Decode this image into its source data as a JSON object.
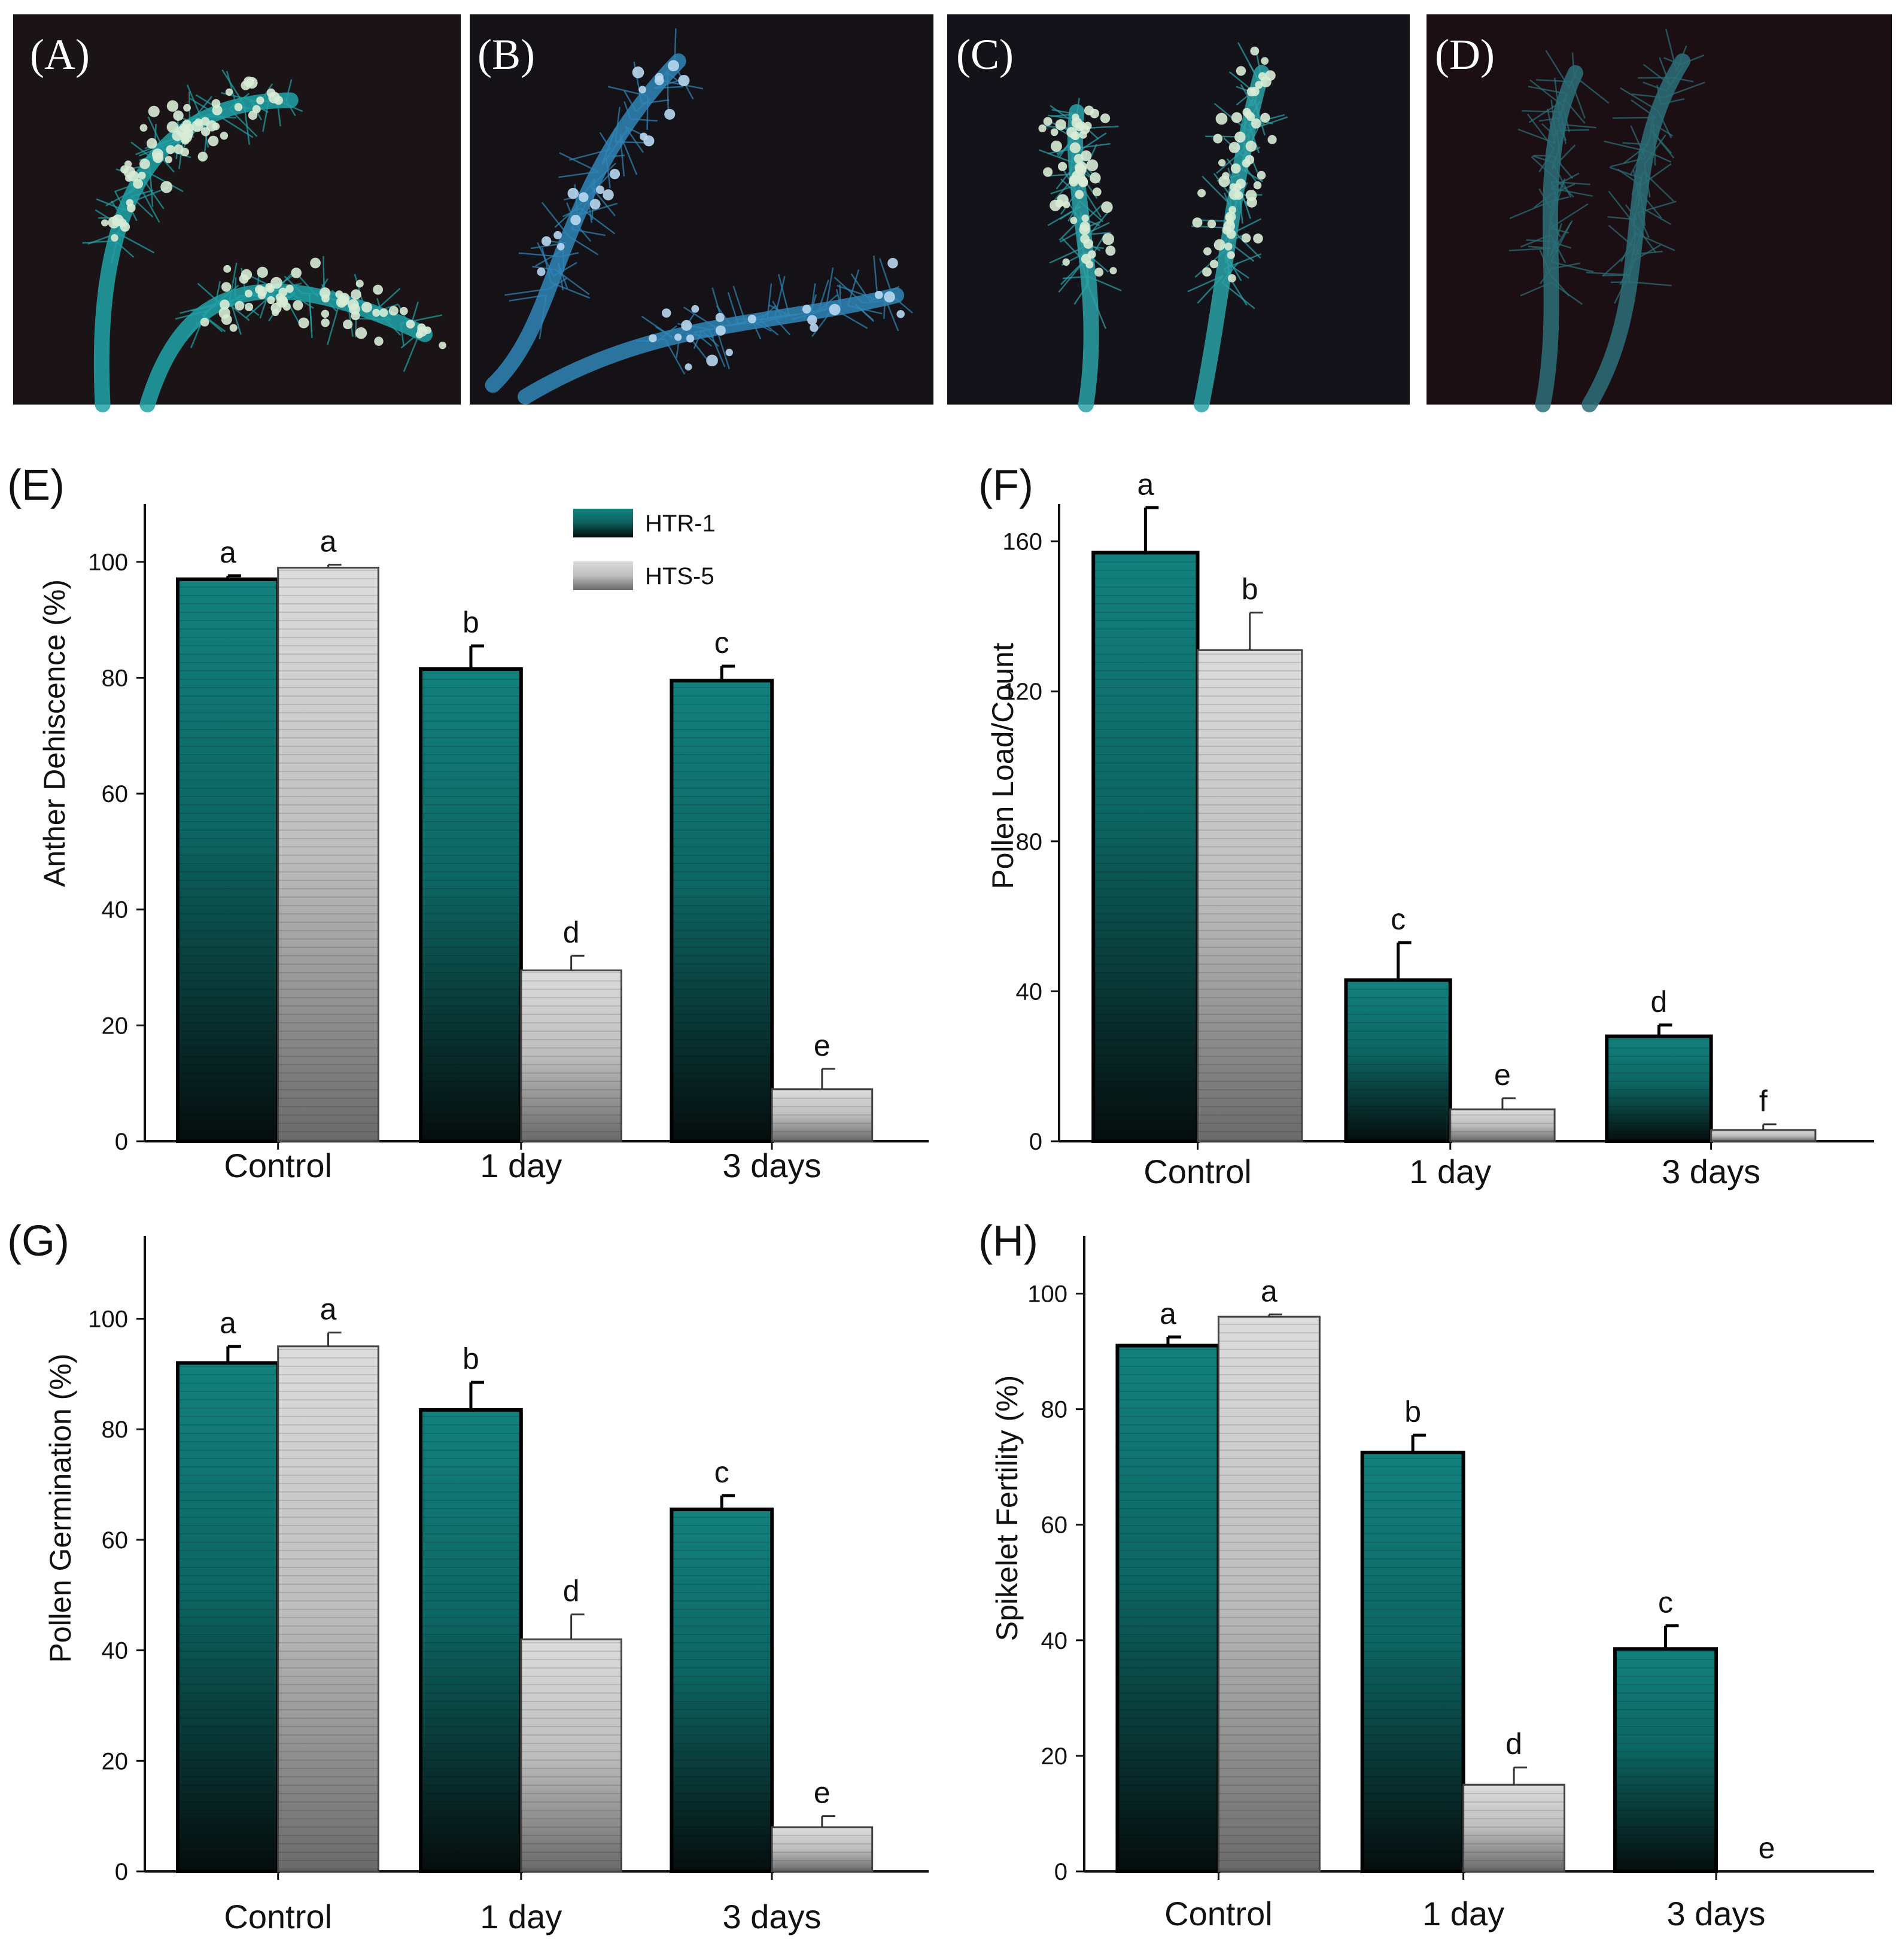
{
  "photos": [
    {
      "label": "(A)",
      "tint": "#20a3a8",
      "bg": "#1a1416"
    },
    {
      "label": "(B)",
      "tint": "#2f86b8",
      "bg": "#141216"
    },
    {
      "label": "(C)",
      "tint": "#2aa2a8",
      "bg": "#15131a"
    },
    {
      "label": "(D)",
      "tint": "#2b6f78",
      "bg": "#1c0f14"
    }
  ],
  "colors": {
    "HTR-1": "#0f7c7b",
    "HTS-5": "#c9c9c9",
    "axis": "#111111"
  },
  "legend": [
    "HTR-1",
    "HTS-5"
  ],
  "chart_data": [
    {
      "panel": "(E)",
      "type": "bar",
      "ylabel": "Anther Dehiscence (%)",
      "categories": [
        "Control",
        "1 day",
        "3 days"
      ],
      "ylim": [
        0,
        110
      ],
      "yticks": [
        0,
        20,
        40,
        60,
        80,
        100
      ],
      "legend": "top-right",
      "series": [
        {
          "name": "HTR-1",
          "values": [
            97,
            81.5,
            79.5
          ],
          "errors": [
            0.6,
            4,
            2.5
          ],
          "letters": [
            "a",
            "b",
            "c"
          ]
        },
        {
          "name": "HTS-5",
          "values": [
            99,
            29.5,
            9
          ],
          "errors": [
            0.5,
            2.5,
            3.5
          ],
          "letters": [
            "a",
            "d",
            "e"
          ]
        }
      ]
    },
    {
      "panel": "(F)",
      "type": "bar",
      "ylabel": "Pollen Load/Count",
      "categories": [
        "Control",
        "1 day",
        "3 days"
      ],
      "ylim": [
        0,
        170
      ],
      "yticks": [
        0,
        40,
        80,
        120,
        160
      ],
      "series": [
        {
          "name": "HTR-1",
          "values": [
            157,
            43,
            28
          ],
          "errors": [
            12,
            10,
            3
          ],
          "letters": [
            "a",
            "c",
            "d"
          ]
        },
        {
          "name": "HTS-5",
          "values": [
            131,
            8.5,
            3
          ],
          "errors": [
            10,
            3,
            1.5
          ],
          "letters": [
            "b",
            "e",
            "f"
          ]
        }
      ]
    },
    {
      "panel": "(G)",
      "type": "bar",
      "ylabel": "Pollen Germination (%)",
      "categories": [
        "Control",
        "1 day",
        "3 days"
      ],
      "ylim": [
        0,
        115
      ],
      "yticks": [
        0,
        20,
        40,
        60,
        80,
        100
      ],
      "series": [
        {
          "name": "HTR-1",
          "values": [
            92,
            83.5,
            65.5
          ],
          "errors": [
            3,
            5,
            2.5
          ],
          "letters": [
            "a",
            "b",
            "c"
          ]
        },
        {
          "name": "HTS-5",
          "values": [
            95,
            42,
            8
          ],
          "errors": [
            2.5,
            4.5,
            2
          ],
          "letters": [
            "a",
            "d",
            "e"
          ]
        }
      ]
    },
    {
      "panel": "(H)",
      "type": "bar",
      "ylabel": "Spikelet Fertility (%)",
      "categories": [
        "Control",
        "1 day",
        "3 days"
      ],
      "ylim": [
        0,
        110
      ],
      "yticks": [
        0,
        20,
        40,
        60,
        80,
        100
      ],
      "series": [
        {
          "name": "HTR-1",
          "values": [
            91,
            72.5,
            38.5
          ],
          "errors": [
            1.5,
            3,
            4
          ],
          "letters": [
            "a",
            "b",
            "c"
          ]
        },
        {
          "name": "HTS-5",
          "values": [
            96,
            15,
            0
          ],
          "errors": [
            0.4,
            3,
            0
          ],
          "letters": [
            "a",
            "d",
            "e"
          ]
        }
      ]
    }
  ]
}
